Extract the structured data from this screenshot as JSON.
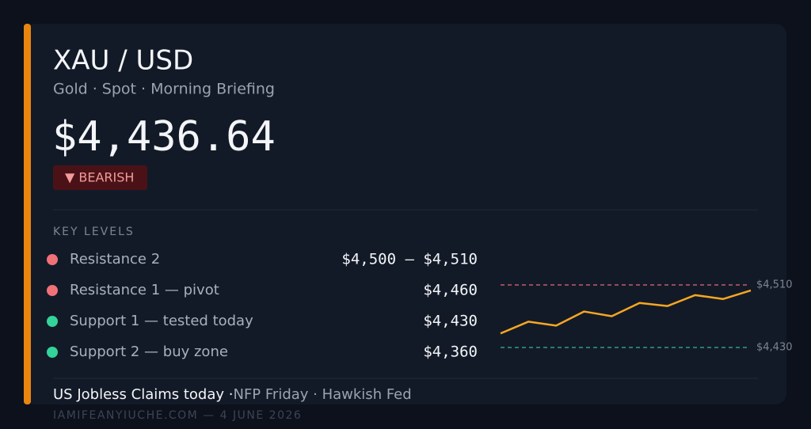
{
  "header": {
    "title": "XAU / USD",
    "subtitle": "Gold · Spot · Morning Briefing"
  },
  "price": "$4,436.64",
  "badge": "▼ BEARISH",
  "key_levels": {
    "title": "KEY LEVELS",
    "rows": [
      {
        "label": "Resistance 2",
        "value": "$4,500 – $4,510",
        "color": "#f07178"
      },
      {
        "label": "Resistance 1 — pivot",
        "value": "$4,460",
        "color": "#f07178"
      },
      {
        "label": "Support 1 — tested today",
        "value": "$4,430",
        "color": "#34d399"
      },
      {
        "label": "Support 2 — buy zone",
        "value": "$4,360",
        "color": "#34d399"
      }
    ]
  },
  "sparkline": {
    "type": "line",
    "color": "#f5a623",
    "values": [
      4448,
      4463,
      4458,
      4476,
      4470,
      4487,
      4483,
      4497,
      4492,
      4503
    ],
    "reference_lines": [
      {
        "value": 4510,
        "label": "$4,510",
        "color": "#e06c75"
      },
      {
        "value": 4430,
        "label": "$4,430",
        "color": "#34b89a"
      }
    ]
  },
  "footer": {
    "highlight": "US Jobless Claims today ·",
    "rest": "NFP Friday · Hawkish Fed",
    "credit": "IAMIFEANYIUCHE.COM — 4 JUNE 2026"
  }
}
